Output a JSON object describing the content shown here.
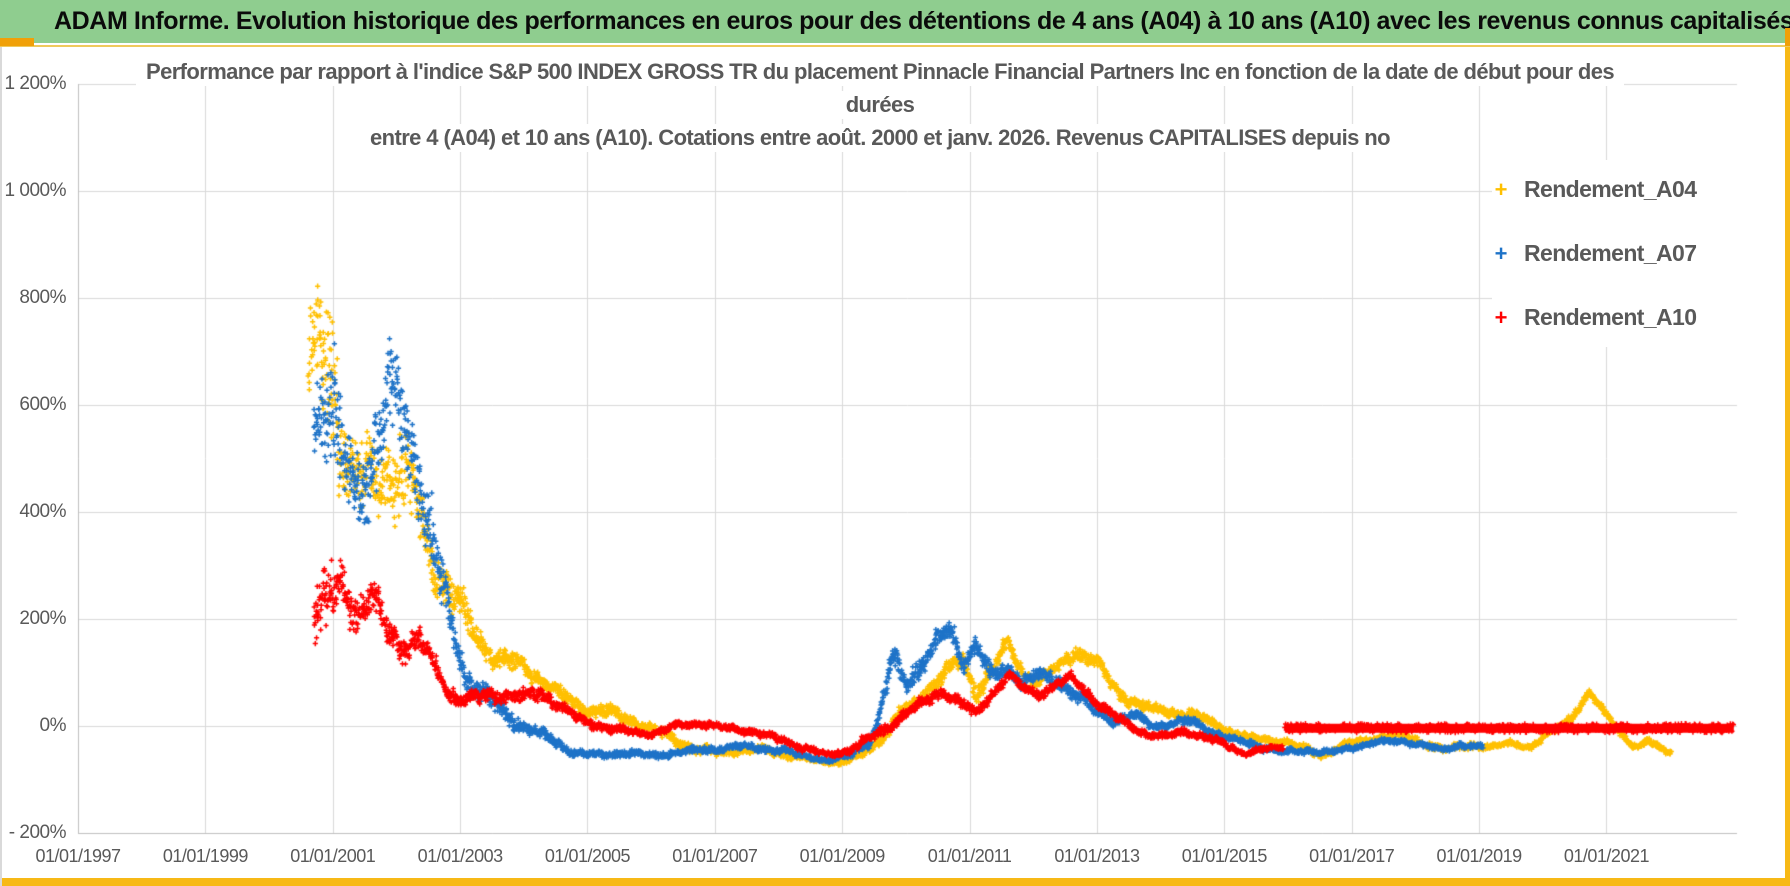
{
  "header": {
    "title": "ADAM Informe. Evolution historique des performances en euros pour des détentions de 4 ans (A04) à 10 ans (A10) avec les revenus connus capitalisés",
    "bg_color": "#8FCD8F"
  },
  "chart_data": {
    "type": "scatter",
    "title_lines": [
      "Performance par rapport à l'indice S&P 500 INDEX GROSS TR  du placement Pinnacle Financial Partners Inc en fonction de la date de début pour des",
      "durées",
      "entre 4 (A04) et 10 ans (A10). Cotations entre août. 2000 et janv. 2026. Revenus CAPITALISES depuis no"
    ],
    "grid": true,
    "legend_position": "right",
    "xlim": [
      1997,
      2023.05
    ],
    "ylim": [
      -200,
      1200
    ],
    "y_ticks": [
      {
        "label": "1 200%",
        "value": 1200
      },
      {
        "label": "1 000%",
        "value": 1000
      },
      {
        "label": "800%",
        "value": 800
      },
      {
        "label": "600%",
        "value": 600
      },
      {
        "label": "400%",
        "value": 400
      },
      {
        "label": "200%",
        "value": 200
      },
      {
        "label": "0%",
        "value": 0
      },
      {
        "label": "- 200%",
        "value": -200
      }
    ],
    "x_ticks": [
      {
        "label": "01/01/1997",
        "year": 1997
      },
      {
        "label": "01/01/1999",
        "year": 1999
      },
      {
        "label": "01/01/2001",
        "year": 2001
      },
      {
        "label": "01/01/2003",
        "year": 2003
      },
      {
        "label": "01/01/2005",
        "year": 2005
      },
      {
        "label": "01/01/2007",
        "year": 2007
      },
      {
        "label": "01/01/2009",
        "year": 2009
      },
      {
        "label": "01/01/2011",
        "year": 2011
      },
      {
        "label": "01/01/2013",
        "year": 2013
      },
      {
        "label": "01/01/2015",
        "year": 2015
      },
      {
        "label": "01/01/2017",
        "year": 2017
      },
      {
        "label": "01/01/2019",
        "year": 2019
      },
      {
        "label": "01/01/2021",
        "year": 2021
      }
    ],
    "legend": [
      {
        "label": "Rendement_A04",
        "marker": "+",
        "color": "#FFC000"
      },
      {
        "label": "Rendement_A07",
        "marker": "+",
        "color": "#1E73C8"
      },
      {
        "label": "Rendement_A10",
        "marker": "+",
        "color": "#FF0000"
      }
    ],
    "grid_color": "#D9D9D9",
    "axis_color": "#BFBFBF",
    "text_color": "#595959",
    "series": [
      {
        "name": "Rendement_A04",
        "color": "#FFC000",
        "marker": "+",
        "step_years": 0.0055,
        "anchors": [
          [
            2000.62,
            640,
            120
          ],
          [
            2000.92,
            700,
            270
          ],
          [
            2001.1,
            560,
            160
          ],
          [
            2001.3,
            470,
            110
          ],
          [
            2001.55,
            450,
            120
          ],
          [
            2001.8,
            490,
            110
          ],
          [
            2002.05,
            480,
            130
          ],
          [
            2002.3,
            420,
            90
          ],
          [
            2002.55,
            310,
            70
          ],
          [
            2002.8,
            260,
            60
          ],
          [
            2003.0,
            220,
            50
          ],
          [
            2003.25,
            170,
            40
          ],
          [
            2003.5,
            130,
            30
          ],
          [
            2003.75,
            120,
            30
          ],
          [
            2004.0,
            110,
            25
          ],
          [
            2004.25,
            90,
            25
          ],
          [
            2004.6,
            55,
            20
          ],
          [
            2005.0,
            30,
            20
          ],
          [
            2005.4,
            25,
            20
          ],
          [
            2005.8,
            5,
            15
          ],
          [
            2006.2,
            -15,
            15
          ],
          [
            2006.6,
            -40,
            15
          ],
          [
            2007.0,
            -50,
            12
          ],
          [
            2007.4,
            -45,
            12
          ],
          [
            2007.8,
            -45,
            12
          ],
          [
            2008.2,
            -55,
            10
          ],
          [
            2008.6,
            -65,
            8
          ],
          [
            2008.95,
            -68,
            8
          ],
          [
            2009.3,
            -55,
            10
          ],
          [
            2009.6,
            -25,
            15
          ],
          [
            2009.9,
            20,
            20
          ],
          [
            2010.2,
            45,
            20
          ],
          [
            2010.6,
            105,
            25
          ],
          [
            2010.9,
            120,
            25
          ],
          [
            2011.1,
            60,
            25
          ],
          [
            2011.35,
            110,
            25
          ],
          [
            2011.6,
            150,
            20
          ],
          [
            2011.85,
            95,
            20
          ],
          [
            2012.1,
            90,
            20
          ],
          [
            2012.4,
            110,
            20
          ],
          [
            2012.7,
            140,
            20
          ],
          [
            2013.0,
            120,
            20
          ],
          [
            2013.3,
            65,
            20
          ],
          [
            2013.6,
            45,
            15
          ],
          [
            2013.9,
            30,
            15
          ],
          [
            2014.2,
            25,
            12
          ],
          [
            2014.5,
            25,
            12
          ],
          [
            2014.8,
            5,
            12
          ],
          [
            2015.1,
            -10,
            10
          ],
          [
            2015.5,
            -25,
            10
          ],
          [
            2016.0,
            -30,
            10
          ],
          [
            2016.5,
            -55,
            10
          ],
          [
            2016.9,
            -35,
            10
          ],
          [
            2017.3,
            -25,
            10
          ],
          [
            2017.7,
            -15,
            10
          ],
          [
            2018.1,
            -30,
            10
          ],
          [
            2018.5,
            -45,
            10
          ],
          [
            2018.9,
            -35,
            10
          ],
          [
            2019.2,
            -40,
            8
          ],
          [
            2019.5,
            -32,
            8
          ],
          [
            2019.8,
            -40,
            8
          ],
          [
            2020.1,
            -15,
            10
          ],
          [
            2020.4,
            10,
            12
          ],
          [
            2020.6,
            40,
            12
          ],
          [
            2020.72,
            62,
            10
          ],
          [
            2020.9,
            35,
            12
          ],
          [
            2021.1,
            5,
            10
          ],
          [
            2021.35,
            -30,
            10
          ],
          [
            2021.5,
            -40,
            8
          ],
          [
            2021.65,
            -28,
            8
          ],
          [
            2021.9,
            -45,
            8
          ],
          [
            2022.02,
            -48,
            6
          ]
        ]
      },
      {
        "name": "Rendement_A07",
        "color": "#1E73C8",
        "marker": "+",
        "step_years": 0.0055,
        "anchors": [
          [
            2000.7,
            560,
            90
          ],
          [
            2000.95,
            640,
            200
          ],
          [
            2001.15,
            480,
            120
          ],
          [
            2001.4,
            420,
            110
          ],
          [
            2001.65,
            520,
            130
          ],
          [
            2001.9,
            620,
            130
          ],
          [
            2002.1,
            560,
            120
          ],
          [
            2002.35,
            480,
            130
          ],
          [
            2002.6,
            330,
            90
          ],
          [
            2002.85,
            190,
            60
          ],
          [
            2003.1,
            90,
            40
          ],
          [
            2003.4,
            60,
            30
          ],
          [
            2003.7,
            20,
            25
          ],
          [
            2004.0,
            0,
            20
          ],
          [
            2004.4,
            -25,
            15
          ],
          [
            2004.8,
            -50,
            12
          ],
          [
            2005.2,
            -55,
            10
          ],
          [
            2005.6,
            -50,
            10
          ],
          [
            2006.0,
            -55,
            10
          ],
          [
            2006.4,
            -50,
            10
          ],
          [
            2006.8,
            -45,
            10
          ],
          [
            2007.2,
            -40,
            10
          ],
          [
            2007.6,
            -40,
            10
          ],
          [
            2008.0,
            -45,
            10
          ],
          [
            2008.4,
            -55,
            8
          ],
          [
            2008.8,
            -65,
            8
          ],
          [
            2009.1,
            -55,
            10
          ],
          [
            2009.4,
            -30,
            15
          ],
          [
            2009.55,
            0,
            20
          ],
          [
            2009.8,
            130,
            30
          ],
          [
            2010.0,
            80,
            25
          ],
          [
            2010.2,
            110,
            30
          ],
          [
            2010.45,
            150,
            30
          ],
          [
            2010.7,
            180,
            25
          ],
          [
            2010.9,
            120,
            25
          ],
          [
            2011.1,
            150,
            25
          ],
          [
            2011.35,
            90,
            25
          ],
          [
            2011.6,
            110,
            20
          ],
          [
            2011.85,
            80,
            20
          ],
          [
            2012.1,
            95,
            20
          ],
          [
            2012.4,
            85,
            20
          ],
          [
            2012.7,
            55,
            20
          ],
          [
            2013.0,
            25,
            15
          ],
          [
            2013.3,
            10,
            15
          ],
          [
            2013.6,
            20,
            12
          ],
          [
            2013.9,
            0,
            12
          ],
          [
            2014.2,
            5,
            12
          ],
          [
            2014.5,
            10,
            12
          ],
          [
            2014.8,
            -10,
            10
          ],
          [
            2015.1,
            -25,
            10
          ],
          [
            2015.5,
            -35,
            10
          ],
          [
            2015.9,
            -50,
            8
          ],
          [
            2016.3,
            -45,
            10
          ],
          [
            2016.7,
            -50,
            8
          ],
          [
            2017.0,
            -40,
            8
          ],
          [
            2017.4,
            -30,
            8
          ],
          [
            2017.8,
            -28,
            8
          ],
          [
            2018.1,
            -35,
            8
          ],
          [
            2018.4,
            -45,
            8
          ],
          [
            2018.7,
            -35,
            8
          ],
          [
            2019.05,
            -40,
            8
          ]
        ]
      },
      {
        "name": "Rendement_A10",
        "color": "#FF0000",
        "marker": "+",
        "step_years": 0.0055,
        "anchors": [
          [
            2000.7,
            200,
            90
          ],
          [
            2000.95,
            230,
            100
          ],
          [
            2001.15,
            270,
            60
          ],
          [
            2001.4,
            210,
            60
          ],
          [
            2001.6,
            240,
            50
          ],
          [
            2001.85,
            180,
            50
          ],
          [
            2002.1,
            150,
            40
          ],
          [
            2002.35,
            160,
            40
          ],
          [
            2002.6,
            110,
            30
          ],
          [
            2002.85,
            60,
            25
          ],
          [
            2003.1,
            50,
            20
          ],
          [
            2003.4,
            55,
            20
          ],
          [
            2003.7,
            60,
            20
          ],
          [
            2004.0,
            55,
            18
          ],
          [
            2004.3,
            60,
            18
          ],
          [
            2004.6,
            35,
            15
          ],
          [
            2004.9,
            10,
            12
          ],
          [
            2005.2,
            0,
            12
          ],
          [
            2005.6,
            -10,
            12
          ],
          [
            2006.0,
            -15,
            10
          ],
          [
            2006.4,
            0,
            10
          ],
          [
            2006.8,
            5,
            10
          ],
          [
            2007.2,
            -5,
            10
          ],
          [
            2007.6,
            -10,
            10
          ],
          [
            2008.0,
            -25,
            10
          ],
          [
            2008.4,
            -40,
            10
          ],
          [
            2008.8,
            -55,
            8
          ],
          [
            2009.1,
            -45,
            10
          ],
          [
            2009.4,
            -25,
            12
          ],
          [
            2009.7,
            -5,
            15
          ],
          [
            2010.0,
            25,
            15
          ],
          [
            2010.3,
            45,
            15
          ],
          [
            2010.6,
            65,
            15
          ],
          [
            2010.9,
            40,
            15
          ],
          [
            2011.1,
            20,
            15
          ],
          [
            2011.35,
            60,
            15
          ],
          [
            2011.6,
            95,
            15
          ],
          [
            2011.85,
            70,
            15
          ],
          [
            2012.1,
            60,
            15
          ],
          [
            2012.4,
            80,
            15
          ],
          [
            2012.6,
            90,
            12
          ],
          [
            2012.9,
            55,
            15
          ],
          [
            2013.2,
            25,
            12
          ],
          [
            2013.5,
            0,
            12
          ],
          [
            2013.8,
            -15,
            10
          ],
          [
            2014.1,
            -20,
            10
          ],
          [
            2014.4,
            -10,
            10
          ],
          [
            2014.7,
            -20,
            10
          ],
          [
            2015.0,
            -35,
            10
          ],
          [
            2015.3,
            -50,
            8
          ],
          [
            2015.6,
            -45,
            8
          ],
          [
            2015.92,
            -40,
            8
          ]
        ],
        "flat_segment": {
          "from": 2015.95,
          "to": 2023.0,
          "value": -4,
          "thickness": 9
        }
      }
    ]
  }
}
